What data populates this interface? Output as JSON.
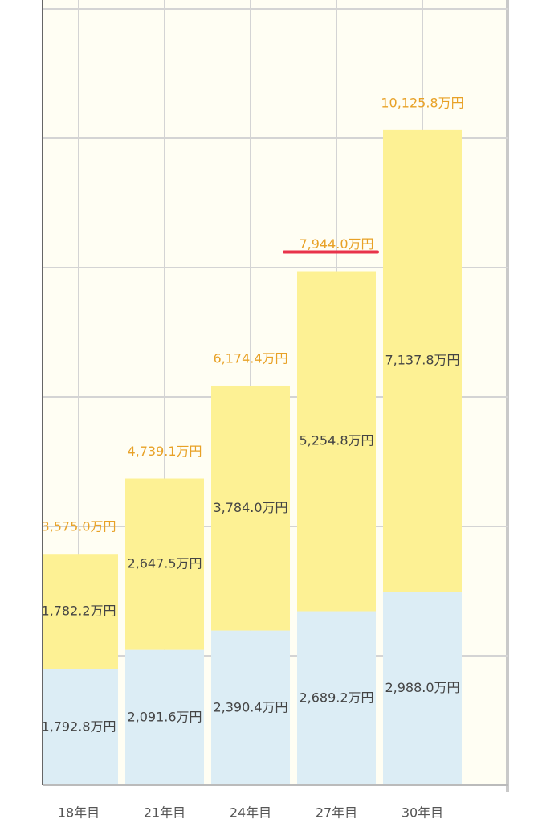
{
  "chart_data": {
    "type": "stacked-bar",
    "categories": [
      "18年目",
      "21年目",
      "24年目",
      "27年目",
      "30年目"
    ],
    "series": [
      {
        "color": "#dcedf5",
        "values": [
          1792.8,
          2091.6,
          2390.4,
          2689.2,
          2988.0
        ],
        "value_labels": [
          "1,792.8万円",
          "2,091.6万円",
          "2,390.4万円",
          "2,689.2万円",
          "2,988.0万円"
        ]
      },
      {
        "color": "#fdf194",
        "values": [
          1782.2,
          2647.5,
          3784.0,
          5254.8,
          7137.8
        ],
        "value_labels": [
          "1,782.2万円",
          "2,647.5万円",
          "3,784.0万円",
          "5,254.8万円",
          "7,137.8万円"
        ]
      }
    ],
    "totals": {
      "color": "#e8a126",
      "values": [
        3575.0,
        4739.1,
        6174.4,
        7944.0,
        10125.8
      ],
      "value_labels": [
        "3,575.0万円",
        "4,739.1万円",
        "6,174.4万円",
        "7,944.0万円",
        "10,125.8万円"
      ]
    },
    "ylim": [
      0,
      12000
    ],
    "yticks": [
      0,
      2000,
      4000,
      6000,
      8000,
      10000,
      12000
    ],
    "grid": true
  }
}
